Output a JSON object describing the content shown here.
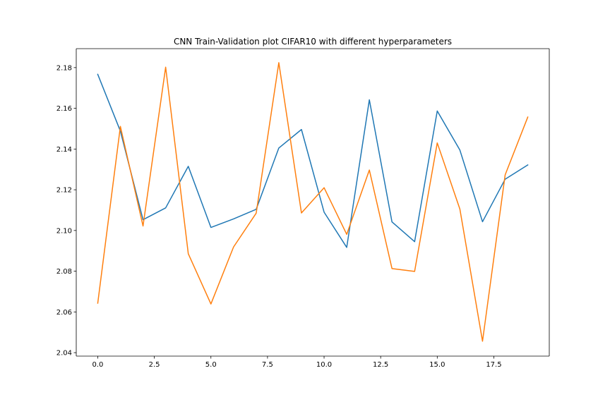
{
  "chart_data": {
    "type": "line",
    "title": "CNN Train-Validation plot CIFAR10 with different hyperparameters",
    "xlabel": "",
    "ylabel": "",
    "xlim": [
      -0.95,
      19.95
    ],
    "ylim": [
      2.0383,
      2.1893
    ],
    "xticks": [
      0.0,
      2.5,
      5.0,
      7.5,
      10.0,
      12.5,
      15.0,
      17.5
    ],
    "xtick_labels": [
      "0.0",
      "2.5",
      "5.0",
      "7.5",
      "10.0",
      "12.5",
      "15.0",
      "17.5"
    ],
    "yticks": [
      2.04,
      2.06,
      2.08,
      2.1,
      2.12,
      2.14,
      2.16,
      2.18
    ],
    "ytick_labels": [
      "2.04",
      "2.06",
      "2.08",
      "2.10",
      "2.12",
      "2.14",
      "2.16",
      "2.18"
    ],
    "grid": false,
    "legend": false,
    "x": [
      0,
      1,
      2,
      3,
      4,
      5,
      6,
      7,
      8,
      9,
      10,
      11,
      12,
      13,
      14,
      15,
      16,
      17,
      18,
      19
    ],
    "series": [
      {
        "color": "#1f77b4",
        "values": [
          2.1767,
          2.1488,
          2.1053,
          2.1111,
          2.1315,
          2.1015,
          2.1057,
          2.1104,
          2.1405,
          2.1496,
          2.109,
          2.0917,
          2.1642,
          2.1042,
          2.0945,
          2.1587,
          2.1395,
          2.1043,
          2.1252,
          2.1322
        ]
      },
      {
        "color": "#ff7f0e",
        "values": [
          2.0643,
          2.1511,
          2.1022,
          2.1802,
          2.0886,
          2.0639,
          2.0919,
          2.1085,
          2.1824,
          2.1086,
          2.121,
          2.0981,
          2.1297,
          2.0813,
          2.0799,
          2.143,
          2.1105,
          2.0456,
          2.1273,
          2.1557
        ]
      }
    ]
  }
}
